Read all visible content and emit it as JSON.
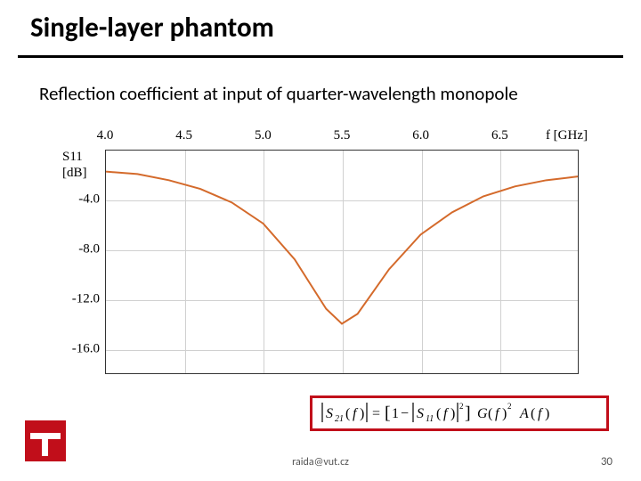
{
  "title": "Single-layer phantom",
  "subtitle": "Reflection coefficient at input of quarter-wavelength monopole",
  "footer_email": "raida@vut.cz",
  "page_number": "30",
  "chart": {
    "type": "line",
    "background_color": "#ffffff",
    "grid_color": "#d0d0d0",
    "border_color": "#333333",
    "xlim": [
      4.0,
      7.0
    ],
    "ylim": [
      -18.0,
      0.0
    ],
    "xticks": [
      4.0,
      4.5,
      5.0,
      5.5,
      6.0,
      6.5
    ],
    "xtick_labels": [
      "4.0",
      "4.5",
      "5.0",
      "5.5",
      "6.0",
      "6.5"
    ],
    "x_unit_label": "f [GHz]",
    "yticks": [
      -4.0,
      -8.0,
      -12.0,
      -16.0
    ],
    "ytick_labels": [
      "-4.0",
      "-8.0",
      "-12.0",
      "-16.0"
    ],
    "ylabel_1": "S11",
    "ylabel_2": "[dB]",
    "tick_fontsize": 15,
    "series": {
      "color": "#d46a2b",
      "width": 2,
      "x": [
        4.0,
        4.2,
        4.4,
        4.6,
        4.8,
        5.0,
        5.2,
        5.3,
        5.4,
        5.5,
        5.6,
        5.7,
        5.8,
        6.0,
        6.2,
        6.4,
        6.6,
        6.8,
        7.0
      ],
      "y": [
        -1.7,
        -1.9,
        -2.4,
        -3.1,
        -4.2,
        -5.9,
        -8.8,
        -10.8,
        -12.8,
        -14.0,
        -13.2,
        -11.4,
        -9.6,
        -6.8,
        -5.0,
        -3.7,
        -2.9,
        -2.4,
        -2.1
      ]
    }
  },
  "formula": {
    "border_color": "#c10e1a",
    "text": "|S21(f)| = [1 - |S11(f)|^2] G(f)^2 A(f)"
  },
  "logo": {
    "background": "#c10e1a",
    "foreground": "#ffffff"
  }
}
